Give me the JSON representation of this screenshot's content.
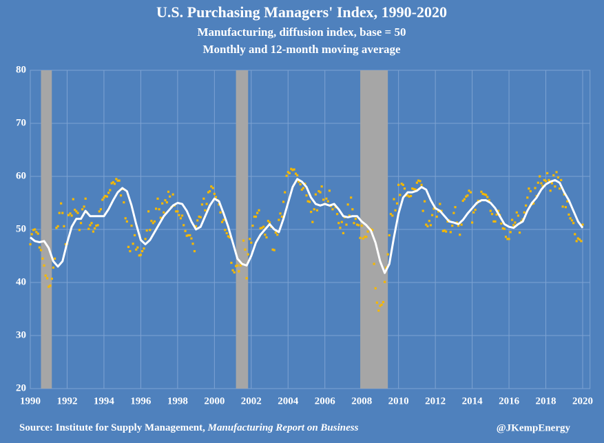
{
  "chart_data": {
    "type": "line",
    "title": "U.S. Purchasing Managers' Index, 1990-2020",
    "subtitle": "Manufacturing, diffusion index, base = 50",
    "subtitle2": "Monthly and 12-month moving average",
    "source": "Source: Institute for Supply Management,",
    "source_publication": "Manufacturing Report on Business",
    "credit": "@JKempEnergy",
    "xlim": [
      1990,
      2020.4
    ],
    "xticks": [
      1990,
      1992,
      1994,
      1996,
      1998,
      2000,
      2002,
      2004,
      2006,
      2008,
      2010,
      2012,
      2014,
      2016,
      2018,
      2020
    ],
    "ylim": [
      20,
      80
    ],
    "yticks": [
      20,
      30,
      40,
      50,
      60,
      70,
      80
    ],
    "grid": true,
    "shaded_periods": [
      [
        1990.58,
        1991.17
      ],
      [
        2001.17,
        2001.83
      ],
      [
        2007.92,
        2009.42
      ]
    ],
    "shade_color": "#a6a6a6",
    "series": [
      {
        "style": "dots",
        "color": "#f5b800",
        "x": [
          1990,
          1990.08,
          1990.17,
          1990.25,
          1990.33,
          1990.42,
          1990.5,
          1990.58,
          1990.67,
          1990.75,
          1990.83,
          1990.92,
          1991,
          1991.08,
          1991.17,
          1991.25,
          1991.33,
          1991.42,
          1991.5,
          1991.58,
          1991.67,
          1991.75,
          1991.83,
          1991.92,
          1992,
          1992.08,
          1992.17,
          1992.25,
          1992.33,
          1992.42,
          1992.5,
          1992.58,
          1992.67,
          1992.75,
          1992.83,
          1992.92,
          1993,
          1993.08,
          1993.17,
          1993.25,
          1993.33,
          1993.42,
          1993.5,
          1993.58,
          1993.67,
          1993.75,
          1993.83,
          1993.92,
          1994,
          1994.08,
          1994.17,
          1994.25,
          1994.33,
          1994.42,
          1994.5,
          1994.58,
          1994.67,
          1994.75,
          1994.83,
          1994.92,
          1995,
          1995.08,
          1995.17,
          1995.25,
          1995.33,
          1995.42,
          1995.5,
          1995.58,
          1995.67,
          1995.75,
          1995.83,
          1995.92,
          1996,
          1996.08,
          1996.17,
          1996.25,
          1996.33,
          1996.42,
          1996.5,
          1996.58,
          1996.67,
          1996.75,
          1996.83,
          1996.92,
          1997,
          1997.08,
          1997.17,
          1997.25,
          1997.33,
          1997.42,
          1997.5,
          1997.58,
          1997.67,
          1997.75,
          1997.83,
          1997.92,
          1998,
          1998.08,
          1998.17,
          1998.25,
          1998.33,
          1998.42,
          1998.5,
          1998.58,
          1998.67,
          1998.75,
          1998.83,
          1998.92,
          1999,
          1999.08,
          1999.17,
          1999.25,
          1999.33,
          1999.42,
          1999.5,
          1999.58,
          1999.67,
          1999.75,
          1999.83,
          1999.92,
          2000,
          2000.08,
          2000.17,
          2000.25,
          2000.33,
          2000.42,
          2000.5,
          2000.58,
          2000.67,
          2000.75,
          2000.83,
          2000.92,
          2001,
          2001.08,
          2001.17,
          2001.25,
          2001.33,
          2001.42,
          2001.5,
          2001.58,
          2001.67,
          2001.75,
          2001.83,
          2001.92,
          2002,
          2002.08,
          2002.17,
          2002.25,
          2002.33,
          2002.42,
          2002.5,
          2002.58,
          2002.67,
          2002.75,
          2002.83,
          2002.92,
          2003,
          2003.08,
          2003.17,
          2003.25,
          2003.33,
          2003.42,
          2003.5,
          2003.58,
          2003.67,
          2003.75,
          2003.83,
          2003.92,
          2004,
          2004.08,
          2004.17,
          2004.25,
          2004.33,
          2004.42,
          2004.5,
          2004.58,
          2004.67,
          2004.75,
          2004.83,
          2004.92,
          2005,
          2005.08,
          2005.17,
          2005.25,
          2005.33,
          2005.42,
          2005.5,
          2005.58,
          2005.67,
          2005.75,
          2005.83,
          2005.92,
          2006,
          2006.08,
          2006.17,
          2006.25,
          2006.33,
          2006.42,
          2006.5,
          2006.58,
          2006.67,
          2006.75,
          2006.83,
          2006.92,
          2007,
          2007.08,
          2007.17,
          2007.25,
          2007.33,
          2007.42,
          2007.5,
          2007.58,
          2007.67,
          2007.75,
          2007.83,
          2007.92,
          2008,
          2008.08,
          2008.17,
          2008.25,
          2008.33,
          2008.42,
          2008.5,
          2008.58,
          2008.67,
          2008.75,
          2008.83,
          2008.92,
          2009,
          2009.08,
          2009.17,
          2009.25,
          2009.33,
          2009.42,
          2009.5,
          2009.58,
          2009.67,
          2009.75,
          2009.83,
          2009.92,
          2010,
          2010.08,
          2010.17,
          2010.25,
          2010.33,
          2010.42,
          2010.5,
          2010.58,
          2010.67,
          2010.75,
          2010.83,
          2010.92,
          2011,
          2011.08,
          2011.17,
          2011.25,
          2011.33,
          2011.42,
          2011.5,
          2011.58,
          2011.67,
          2011.75,
          2011.83,
          2011.92,
          2012,
          2012.08,
          2012.17,
          2012.25,
          2012.33,
          2012.42,
          2012.5,
          2012.58,
          2012.67,
          2012.75,
          2012.83,
          2012.92,
          2013,
          2013.08,
          2013.17,
          2013.25,
          2013.33,
          2013.42,
          2013.5,
          2013.58,
          2013.67,
          2013.75,
          2013.83,
          2013.92,
          2014,
          2014.08,
          2014.17,
          2014.25,
          2014.33,
          2014.42,
          2014.5,
          2014.58,
          2014.67,
          2014.75,
          2014.83,
          2014.92,
          2015,
          2015.08,
          2015.17,
          2015.25,
          2015.33,
          2015.42,
          2015.5,
          2015.58,
          2015.67,
          2015.75,
          2015.83,
          2015.92,
          2016,
          2016.08,
          2016.17,
          2016.25,
          2016.33,
          2016.42,
          2016.5,
          2016.58,
          2016.67,
          2016.75,
          2016.83,
          2016.92,
          2017,
          2017.08,
          2017.17,
          2017.25,
          2017.33,
          2017.42,
          2017.5,
          2017.58,
          2017.67,
          2017.75,
          2017.83,
          2017.92,
          2018,
          2018.08,
          2018.17,
          2018.25,
          2018.33,
          2018.42,
          2018.5,
          2018.58,
          2018.67,
          2018.75,
          2018.83,
          2018.92,
          2019,
          2019.08,
          2019.17,
          2019.25,
          2019.33,
          2019.42,
          2019.5,
          2019.58,
          2019.67,
          2019.75,
          2019.83,
          2019.92,
          2020
        ],
        "values": [
          47.2,
          49.1,
          49.9,
          50.0,
          49.5,
          49.2,
          46.6,
          46.1,
          44.5,
          43.2,
          41.3,
          40.8,
          39.2,
          39.4,
          40.7,
          42.8,
          44.5,
          50.3,
          50.6,
          53.1,
          54.9,
          53.1,
          50.6,
          47.2,
          47.3,
          52.7,
          53.0,
          52.6,
          55.7,
          53.7,
          53.4,
          53.1,
          49.9,
          51.2,
          53.8,
          54.3,
          55.8,
          53.2,
          50.1,
          50.8,
          51.2,
          49.6,
          50.2,
          50.7,
          50.8,
          53.4,
          53.8,
          55.6,
          56.0,
          56.3,
          56.2,
          56.9,
          57.4,
          58.7,
          58.9,
          58.6,
          59.5,
          59.2,
          59.2,
          56.4,
          57.6,
          55.1,
          52.1,
          51.5,
          46.7,
          45.9,
          50.7,
          47.3,
          48.9,
          46.2,
          46.6,
          45.1,
          45.2,
          45.9,
          46.4,
          48.2,
          49.8,
          53.4,
          49.9,
          51.6,
          51.2,
          51.5,
          53.9,
          55.8,
          53.8,
          52.2,
          54.9,
          53.2,
          55.5,
          55.1,
          57.1,
          56.2,
          54.2,
          56.6,
          54.5,
          53.4,
          53.4,
          52.7,
          52.1,
          52.6,
          50.8,
          49.7,
          48.8,
          48.9,
          48.9,
          48.3,
          47.3,
          45.9,
          50.6,
          51.7,
          52.4,
          52.3,
          54.7,
          55.8,
          53.6,
          54.8,
          57.0,
          57.2,
          58.1,
          57.8,
          56.7,
          56.1,
          55.5,
          54.7,
          53.2,
          51.4,
          51.8,
          49.9,
          49.3,
          48.7,
          48.5,
          43.7,
          42.3,
          41.9,
          43.1,
          43.2,
          42.1,
          43.2,
          43.5,
          47.9,
          46.2,
          40.8,
          45.3,
          48.2,
          47.5,
          50.7,
          52.4,
          52.4,
          53.1,
          53.6,
          50.2,
          50.3,
          50.5,
          49.0,
          48.5,
          51.6,
          51.3,
          50.5,
          46.2,
          46.1,
          49.4,
          49.0,
          51.8,
          53.0,
          52.4,
          55.2,
          57.0,
          60.1,
          60.8,
          60.6,
          61.4,
          61.2,
          61.3,
          60.5,
          60.2,
          59.0,
          58.5,
          57.5,
          57.8,
          58.6,
          56.4,
          55.3,
          55.2,
          53.3,
          51.4,
          53.8,
          56.6,
          53.6,
          57.2,
          57.0,
          58.1,
          55.6,
          54.8,
          55.8,
          55.3,
          57.3,
          54.4,
          53.8,
          54.7,
          54.2,
          52.9,
          51.2,
          50.3,
          51.4,
          49.3,
          52.3,
          50.9,
          54.7,
          52.6,
          56.0,
          53.8,
          51.2,
          52.0,
          50.9,
          50.8,
          48.4,
          50.7,
          48.3,
          48.6,
          48.6,
          49.6,
          50.2,
          50.0,
          49.9,
          43.5,
          38.9,
          36.2,
          34.7,
          35.6,
          35.8,
          36.3,
          40.1,
          42.8,
          45.3,
          48.9,
          52.9,
          52.6,
          55.7,
          53.6,
          54.9,
          58.4,
          56.5,
          58.6,
          58.4,
          57.7,
          56.4,
          56.4,
          56.2,
          56.3,
          57.7,
          57.6,
          57.5,
          58.8,
          59.2,
          59.1,
          58.4,
          53.5,
          55.3,
          50.9,
          50.6,
          51.6,
          50.8,
          52.7,
          53.9,
          54.1,
          52.4,
          53.4,
          54.8,
          53.5,
          49.7,
          49.8,
          49.6,
          51.5,
          51.7,
          49.5,
          50.7,
          53.1,
          54.2,
          51.3,
          50.7,
          49.0,
          50.9,
          55.4,
          55.7,
          56.2,
          56.4,
          57.3,
          57.0,
          51.3,
          53.2,
          53.7,
          54.9,
          55.4,
          55.3,
          57.1,
          56.7,
          56.6,
          56.5,
          56.1,
          55.5,
          53.5,
          52.9,
          51.5,
          51.5,
          52.8,
          53.5,
          52.7,
          51.1,
          50.2,
          50.1,
          48.6,
          48.2,
          48.2,
          49.5,
          51.8,
          50.8,
          51.3,
          53.2,
          52.6,
          49.4,
          51.5,
          51.9,
          53.2,
          54.5,
          56.0,
          57.7,
          57.2,
          54.8,
          54.9,
          57.8,
          56.3,
          58.8,
          60.0,
          58.7,
          58.2,
          59.3,
          59.1,
          60.6,
          59.3,
          57.3,
          58.7,
          60.2,
          58.1,
          60.8,
          59.8,
          57.7,
          59.3,
          54.3,
          56.6,
          54.2,
          55.3,
          52.8,
          52.1,
          51.7,
          51.2,
          49.1,
          47.8,
          48.3,
          48.1,
          47.8,
          50.9
        ]
      },
      {
        "style": "line",
        "color": "#ffffff",
        "x": [
          1990,
          1990.25,
          1990.5,
          1990.75,
          1991,
          1991.25,
          1991.5,
          1991.75,
          1992,
          1992.25,
          1992.5,
          1992.75,
          1993,
          1993.25,
          1993.5,
          1993.75,
          1994,
          1994.25,
          1994.5,
          1994.75,
          1995,
          1995.25,
          1995.5,
          1995.75,
          1996,
          1996.25,
          1996.5,
          1996.75,
          1997,
          1997.25,
          1997.5,
          1997.75,
          1998,
          1998.25,
          1998.5,
          1998.75,
          1999,
          1999.25,
          1999.5,
          1999.75,
          2000,
          2000.25,
          2000.5,
          2000.75,
          2001,
          2001.25,
          2001.5,
          2001.75,
          2002,
          2002.25,
          2002.5,
          2002.75,
          2003,
          2003.25,
          2003.5,
          2003.75,
          2004,
          2004.25,
          2004.5,
          2004.75,
          2005,
          2005.25,
          2005.5,
          2005.75,
          2006,
          2006.25,
          2006.5,
          2006.75,
          2007,
          2007.25,
          2007.5,
          2007.75,
          2008,
          2008.25,
          2008.5,
          2008.75,
          2009,
          2009.25,
          2009.5,
          2009.75,
          2010,
          2010.25,
          2010.5,
          2010.75,
          2011,
          2011.25,
          2011.5,
          2011.75,
          2012,
          2012.25,
          2012.5,
          2012.75,
          2013,
          2013.25,
          2013.5,
          2013.75,
          2014,
          2014.25,
          2014.5,
          2014.75,
          2015,
          2015.25,
          2015.5,
          2015.75,
          2016,
          2016.25,
          2016.5,
          2016.75,
          2017,
          2017.25,
          2017.5,
          2017.75,
          2018,
          2018.25,
          2018.5,
          2018.75,
          2019,
          2019.25,
          2019.5,
          2019.75,
          2020
        ],
        "values": [
          48.5,
          47.8,
          47.6,
          47.8,
          46.5,
          44.0,
          43.0,
          44.0,
          47.5,
          50.5,
          52.0,
          52.0,
          53.5,
          52.5,
          52.5,
          52.5,
          52.5,
          53.8,
          55.5,
          57.0,
          57.8,
          57.2,
          54.5,
          51.0,
          48.0,
          47.2,
          48.0,
          49.5,
          51.0,
          52.5,
          53.5,
          54.5,
          55.0,
          54.8,
          53.5,
          51.5,
          50.0,
          50.5,
          52.5,
          54.5,
          55.8,
          55.3,
          53.0,
          50.5,
          47.5,
          44.5,
          43.5,
          43.2,
          45.0,
          47.5,
          49.0,
          50.0,
          51.0,
          50.0,
          49.5,
          52.0,
          55.0,
          58.0,
          59.5,
          59.0,
          58.0,
          56.0,
          54.8,
          54.5,
          54.8,
          54.5,
          54.8,
          53.8,
          52.5,
          52.3,
          52.5,
          52.5,
          51.5,
          50.8,
          49.8,
          47.5,
          44.0,
          41.8,
          43.5,
          48.5,
          53.0,
          56.0,
          57.0,
          57.0,
          57.3,
          58.0,
          57.5,
          55.5,
          54.0,
          53.5,
          52.5,
          51.5,
          51.3,
          51.0,
          51.8,
          53.0,
          54.0,
          55.0,
          55.5,
          55.5,
          55.0,
          54.0,
          52.5,
          51.0,
          50.5,
          50.3,
          51.0,
          51.5,
          53.5,
          55.0,
          56.0,
          57.5,
          58.5,
          59.0,
          59.3,
          58.8,
          57.0,
          55.5,
          53.5,
          51.5,
          50.3
        ]
      }
    ]
  }
}
